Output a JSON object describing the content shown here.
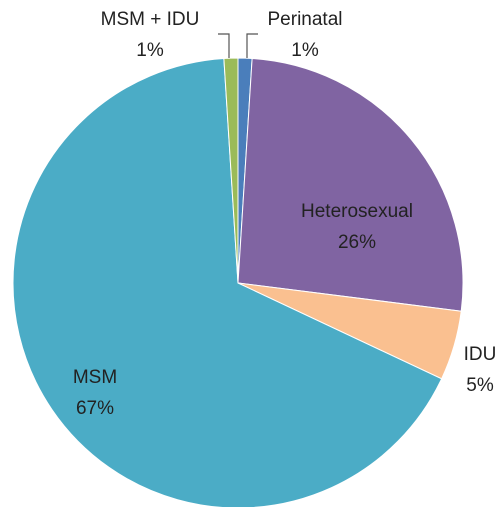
{
  "chart_data": {
    "type": "pie",
    "categories": [
      "Perinatal",
      "Heterosexual",
      "IDU",
      "MSM",
      "MSM + IDU"
    ],
    "values": [
      1,
      26,
      5,
      67,
      1
    ],
    "value_labels": [
      "1%",
      "26%",
      "5%",
      "67%",
      "1%"
    ],
    "colors": [
      "#4a7ebb",
      "#8064a2",
      "#fac090",
      "#4bacc6",
      "#9bbb59"
    ]
  }
}
